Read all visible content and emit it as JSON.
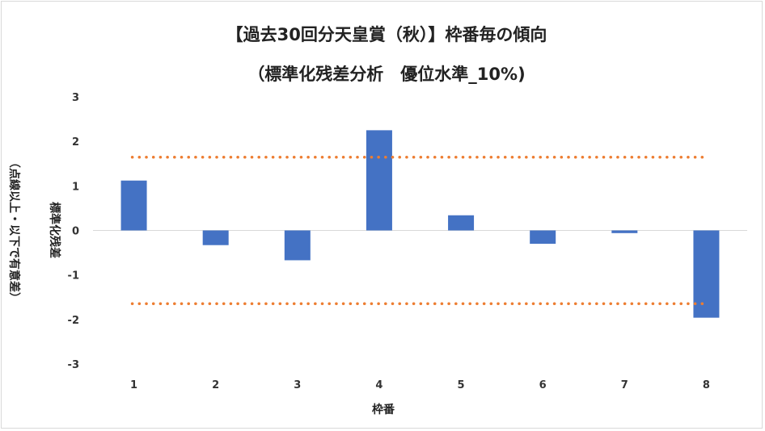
{
  "chart_data": {
    "type": "bar",
    "title_line1": "【過去30回分天皇賞（秋）】枠番毎の傾向",
    "title_line2": "（標準化残差分析　優位水準_10%)",
    "xlabel": "枠番",
    "ylabel_main": "標準化残差",
    "ylabel_note": "（点線以上・以下で有意差）",
    "categories": [
      "1",
      "2",
      "3",
      "4",
      "5",
      "6",
      "7",
      "8"
    ],
    "values": [
      1.12,
      -0.33,
      -0.67,
      2.25,
      0.34,
      -0.3,
      -0.06,
      -1.96
    ],
    "ylim": [
      -3,
      3
    ],
    "yticks": [
      "3",
      "2",
      "1",
      "0",
      "-1",
      "-2",
      "-3"
    ],
    "threshold_upper": 1.645,
    "threshold_lower": -1.645,
    "grid": false,
    "bar_color": "#4472c4",
    "threshold_color": "#ed7d31"
  }
}
